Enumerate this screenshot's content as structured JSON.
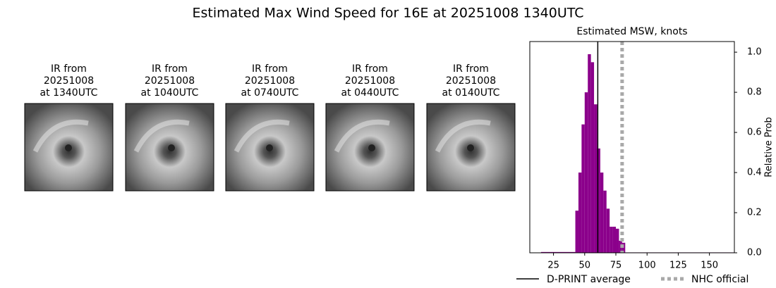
{
  "title": "Estimated Max Wind Speed for 16E at 20251008 1340UTC",
  "panels": [
    {
      "lines": [
        "IR from",
        "20251008",
        "at 1340UTC"
      ]
    },
    {
      "lines": [
        "IR from",
        "20251008",
        "at 1040UTC"
      ]
    },
    {
      "lines": [
        "IR from",
        "20251008",
        "at 0740UTC"
      ]
    },
    {
      "lines": [
        "IR from",
        "20251008",
        "at 0440UTC"
      ]
    },
    {
      "lines": [
        "IR from",
        "20251008",
        "at 0140UTC"
      ]
    }
  ],
  "chart_data": {
    "type": "histogram",
    "title": "Estimated MSW, knots",
    "ylabel": "Relative Prob",
    "color": "#8b008b",
    "bins": [
      15,
      42.5,
      45,
      47.5,
      50,
      52.5,
      55,
      57.5,
      60,
      62.5,
      65,
      67.5,
      70,
      72.5,
      75,
      77.5,
      80,
      82.5,
      170
    ],
    "values": [
      0.004,
      0.21,
      0.4,
      0.64,
      0.8,
      0.99,
      0.95,
      0.74,
      0.52,
      0.4,
      0.31,
      0.22,
      0.13,
      0.13,
      0.12,
      0.06,
      0.05,
      0.002
    ],
    "xlim": [
      6,
      170
    ],
    "xticks": [
      25,
      50,
      75,
      100,
      125,
      150
    ],
    "ylim": [
      0,
      1.053
    ],
    "yticks": [
      {
        "value": 0,
        "label": "0.0"
      },
      {
        "value": 0.2,
        "label": "0.2"
      },
      {
        "value": 0.4,
        "label": "0.4"
      },
      {
        "value": 0.6,
        "label": "0.6"
      },
      {
        "value": 0.8,
        "label": "0.8"
      },
      {
        "value": 1,
        "label": "1.0"
      }
    ],
    "lines": [
      {
        "name": "D-PRINT average",
        "value": 60.5,
        "color": "#000000",
        "style": "solid"
      },
      {
        "name": "NHC official",
        "value": 80,
        "color": "#a9a9a9",
        "style": "dotted"
      }
    ]
  }
}
